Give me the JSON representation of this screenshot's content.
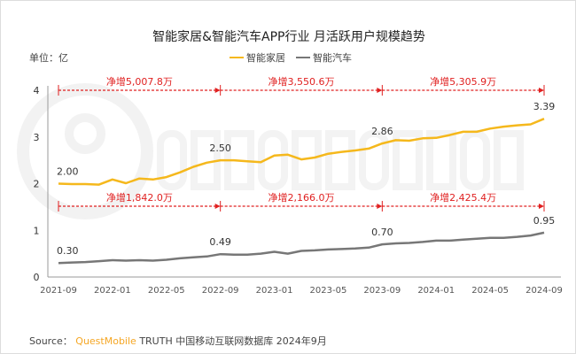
{
  "chart_data": {
    "type": "line",
    "title": "智能家居&智能汽车APP行业 月活跃用户规模趋势",
    "unit_label": "单位：亿",
    "ylim": [
      0,
      4
    ],
    "yticks": [
      "0",
      "1",
      "2",
      "3",
      "4"
    ],
    "x": [
      "2021-09",
      "2021-10",
      "2021-11",
      "2021-12",
      "2022-01",
      "2022-02",
      "2022-03",
      "2022-04",
      "2022-05",
      "2022-06",
      "2022-07",
      "2022-08",
      "2022-09",
      "2022-10",
      "2022-11",
      "2022-12",
      "2023-01",
      "2023-02",
      "2023-03",
      "2023-04",
      "2023-05",
      "2023-06",
      "2023-07",
      "2023-08",
      "2023-09",
      "2023-10",
      "2023-11",
      "2023-12",
      "2024-01",
      "2024-02",
      "2024-03",
      "2024-04",
      "2024-05",
      "2024-06",
      "2024-07",
      "2024-08",
      "2024-09"
    ],
    "xtick_labels": [
      "2021-09",
      "2022-01",
      "2022-05",
      "2022-09",
      "2023-01",
      "2023-05",
      "2023-09",
      "2024-01",
      "2024-05",
      "2024-09"
    ],
    "legend_position": "top",
    "grid": false,
    "series": [
      {
        "name": "智能家居",
        "color": "#f5b81c",
        "values": [
          2.0,
          1.99,
          1.99,
          1.98,
          2.09,
          2.01,
          2.11,
          2.09,
          2.14,
          2.24,
          2.36,
          2.45,
          2.5,
          2.5,
          2.48,
          2.46,
          2.6,
          2.62,
          2.52,
          2.56,
          2.64,
          2.68,
          2.71,
          2.75,
          2.86,
          2.93,
          2.92,
          2.97,
          2.98,
          3.04,
          3.11,
          3.11,
          3.18,
          3.22,
          3.25,
          3.27,
          3.39
        ],
        "data_labels": [
          {
            "x": "2021-09",
            "text": "2.00"
          },
          {
            "x": "2022-09",
            "text": "2.50"
          },
          {
            "x": "2023-09",
            "text": "2.86"
          },
          {
            "x": "2024-09",
            "text": "3.39"
          }
        ],
        "annotations": [
          "净增5,007.8万",
          "净增3,550.6万",
          "净增5,305.9万"
        ]
      },
      {
        "name": "智能汽车",
        "color": "#777777",
        "values": [
          0.3,
          0.31,
          0.32,
          0.34,
          0.36,
          0.35,
          0.36,
          0.35,
          0.37,
          0.4,
          0.42,
          0.44,
          0.49,
          0.48,
          0.48,
          0.5,
          0.54,
          0.5,
          0.56,
          0.57,
          0.59,
          0.6,
          0.61,
          0.63,
          0.7,
          0.72,
          0.73,
          0.75,
          0.78,
          0.78,
          0.8,
          0.82,
          0.84,
          0.84,
          0.86,
          0.89,
          0.95
        ],
        "data_labels": [
          {
            "x": "2021-09",
            "text": "0.30"
          },
          {
            "x": "2022-09",
            "text": "0.49"
          },
          {
            "x": "2023-09",
            "text": "0.70"
          },
          {
            "x": "2024-09",
            "text": "0.95"
          }
        ],
        "annotations": [
          "净增1,842.0万",
          "净增2,166.0万",
          "净增2,425.4万"
        ]
      }
    ],
    "annotation_color": "#e02020"
  },
  "watermark": "QUEST MOBILE",
  "source": {
    "prefix": "Source：",
    "brand": "QuestMobile",
    "text": "TRUTH 中国移动互联网数据库 2024年9月"
  }
}
